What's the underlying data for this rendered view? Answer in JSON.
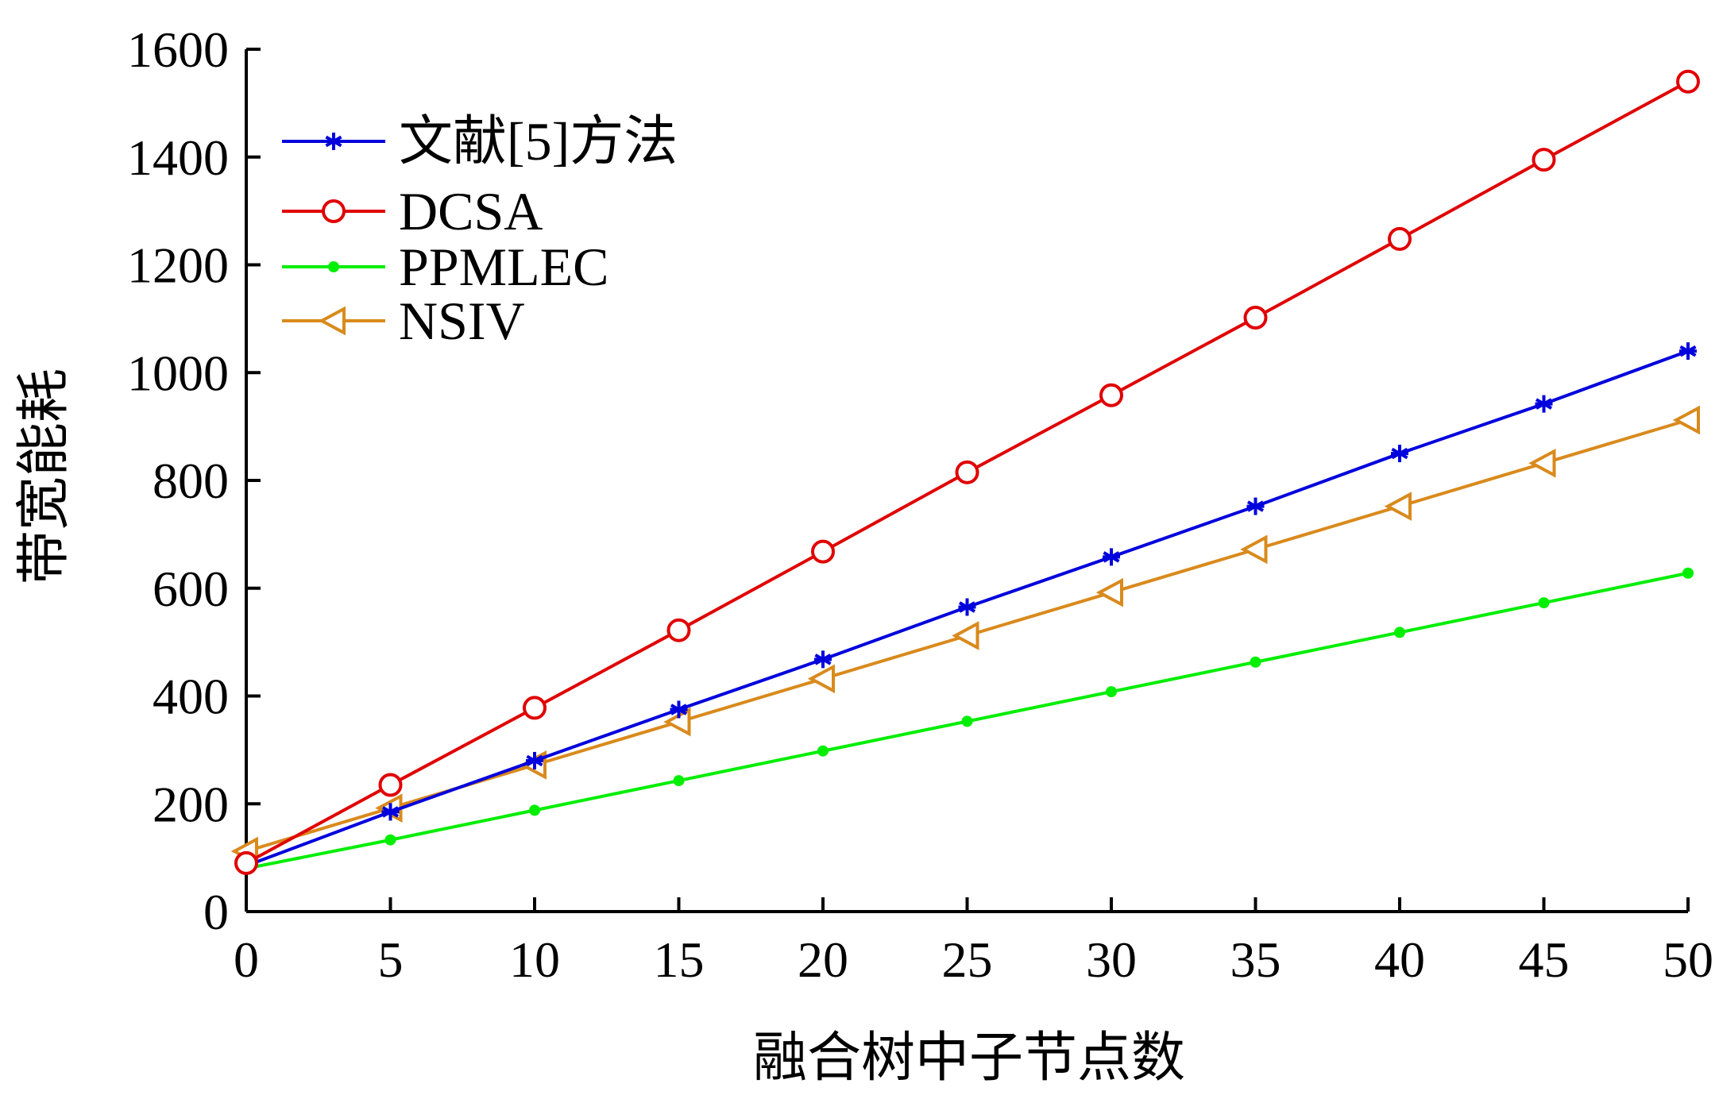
{
  "chart_data": {
    "type": "line",
    "title": "",
    "xlabel": "融合树中子节点数",
    "ylabel": "带宽能耗",
    "x": [
      0,
      5,
      10,
      15,
      20,
      25,
      30,
      35,
      40,
      45,
      50
    ],
    "xlim": [
      0,
      50
    ],
    "ylim": [
      0,
      1600
    ],
    "xticks": [
      "0",
      "5",
      "10",
      "15",
      "20",
      "25",
      "30",
      "35",
      "40",
      "45",
      "50"
    ],
    "yticks": [
      "0",
      "200",
      "400",
      "600",
      "800",
      "1000",
      "1200",
      "1400",
      "1600"
    ],
    "grid": false,
    "legend_position": "top-left",
    "series": [
      {
        "name": "文献[5]方法",
        "color": "#0000dd",
        "marker": "asterisk",
        "values": [
          85,
          185,
          280,
          375,
          468,
          565,
          658,
          752,
          850,
          942,
          1040
        ]
      },
      {
        "name": "DCSA",
        "color": "#e00000",
        "marker": "circle",
        "values": [
          90,
          235,
          378,
          522,
          668,
          815,
          958,
          1102,
          1248,
          1395,
          1540
        ]
      },
      {
        "name": "PPMLEC",
        "color": "#00ee00",
        "marker": "dot",
        "values": [
          80,
          133,
          188,
          243,
          298,
          353,
          408,
          463,
          518,
          573,
          628
        ]
      },
      {
        "name": "NSIV",
        "color": "#d98a1c",
        "marker": "triangle-left",
        "values": [
          112,
          192,
          272,
          352,
          432,
          512,
          592,
          672,
          752,
          832,
          912
        ]
      }
    ]
  }
}
